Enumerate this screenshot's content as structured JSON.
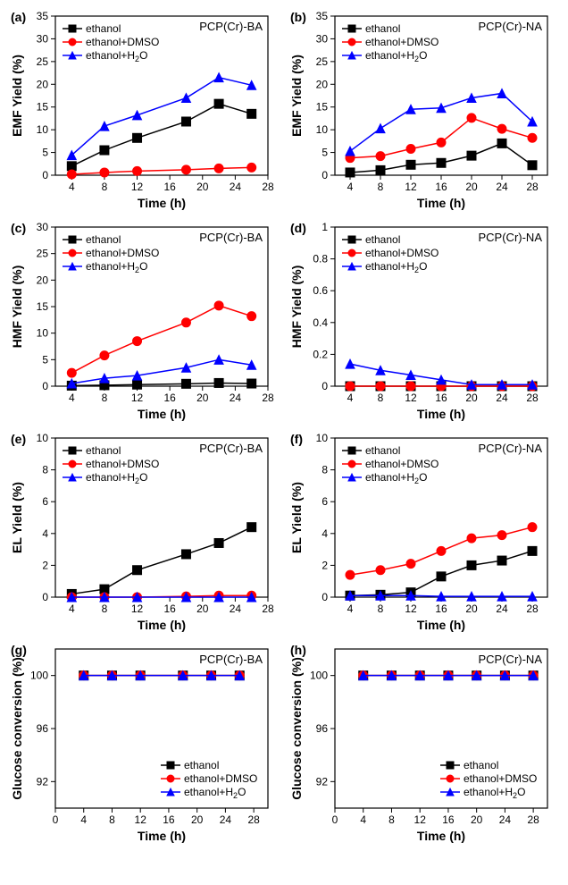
{
  "colors": {
    "ethanol": "#000000",
    "dmso": "#ff0000",
    "h2o": "#0000ff",
    "axis": "#000000",
    "bg": "#ffffff"
  },
  "markers": {
    "ethanol": "square",
    "dmso": "circle",
    "h2o": "triangle"
  },
  "marker_size": 5,
  "line_width": 1.5,
  "font": {
    "axis_label": 14,
    "tick": 12,
    "letter": 14,
    "legend": 12,
    "title": 13
  },
  "legend_labels": {
    "ethanol": "ethanol",
    "dmso": "ethanol+DMSO",
    "h2o": "ethanol+H₂O"
  },
  "panels": [
    {
      "id": "a",
      "letter": "(a)",
      "title": "PCP(Cr)-BA",
      "ylabel": "EMF Yield (%)",
      "xlabel": "Time (h)",
      "xlim": [
        2,
        28
      ],
      "xticks": [
        4,
        8,
        12,
        16,
        20,
        24,
        28
      ],
      "ylim": [
        0,
        35
      ],
      "yticks": [
        0,
        5,
        10,
        15,
        20,
        25,
        30,
        35
      ],
      "legend_pos": "inside-top-left",
      "series": {
        "ethanol": {
          "x": [
            4,
            8,
            12,
            18,
            22,
            26
          ],
          "y": [
            2.0,
            5.5,
            8.2,
            11.8,
            15.7,
            13.5
          ]
        },
        "dmso": {
          "x": [
            4,
            8,
            12,
            18,
            22,
            26
          ],
          "y": [
            0.2,
            0.6,
            0.9,
            1.2,
            1.5,
            1.7
          ]
        },
        "h2o": {
          "x": [
            4,
            8,
            12,
            18,
            22,
            26
          ],
          "y": [
            4.4,
            10.8,
            13.2,
            17.0,
            21.5,
            19.8
          ]
        }
      }
    },
    {
      "id": "b",
      "letter": "(b)",
      "title": "PCP(Cr)-NA",
      "ylabel": "EMF Yield (%)",
      "xlabel": "Time (h)",
      "xlim": [
        2,
        30
      ],
      "xticks": [
        4,
        8,
        12,
        16,
        20,
        24,
        28
      ],
      "ylim": [
        0,
        35
      ],
      "yticks": [
        0,
        5,
        10,
        15,
        20,
        25,
        30,
        35
      ],
      "legend_pos": "inside-top-left",
      "series": {
        "ethanol": {
          "x": [
            4,
            8,
            12,
            16,
            20,
            24,
            28
          ],
          "y": [
            0.6,
            1.1,
            2.3,
            2.7,
            4.3,
            7.0,
            2.2
          ]
        },
        "dmso": {
          "x": [
            4,
            8,
            12,
            16,
            20,
            24,
            28
          ],
          "y": [
            3.8,
            4.2,
            5.8,
            7.2,
            12.6,
            10.2,
            8.2
          ]
        },
        "h2o": {
          "x": [
            4,
            8,
            12,
            16,
            20,
            24,
            28
          ],
          "y": [
            5.3,
            10.3,
            14.5,
            14.8,
            17.0,
            18.0,
            11.8
          ]
        }
      }
    },
    {
      "id": "c",
      "letter": "(c)",
      "title": "PCP(Cr)-BA",
      "ylabel": "HMF Yield (%)",
      "xlabel": "Time (h)",
      "xlim": [
        2,
        28
      ],
      "xticks": [
        4,
        8,
        12,
        16,
        20,
        24,
        28
      ],
      "ylim": [
        0,
        30
      ],
      "yticks": [
        0,
        5,
        10,
        15,
        20,
        25,
        30
      ],
      "legend_pos": "inside-top-left",
      "series": {
        "ethanol": {
          "x": [
            4,
            8,
            12,
            18,
            22,
            26
          ],
          "y": [
            0.1,
            0.18,
            0.3,
            0.45,
            0.6,
            0.5
          ]
        },
        "dmso": {
          "x": [
            4,
            8,
            12,
            18,
            22,
            26
          ],
          "y": [
            2.5,
            5.8,
            8.5,
            12.0,
            15.2,
            13.2
          ]
        },
        "h2o": {
          "x": [
            4,
            8,
            12,
            18,
            22,
            26
          ],
          "y": [
            0.5,
            1.5,
            2.0,
            3.5,
            5.0,
            4.0
          ]
        }
      }
    },
    {
      "id": "d",
      "letter": "(d)",
      "title": "PCP(Cr)-NA",
      "ylabel": "HMF Yield (%)",
      "xlabel": "Time (h)",
      "xlim": [
        2,
        30
      ],
      "xticks": [
        4,
        8,
        12,
        16,
        20,
        24,
        28
      ],
      "ylim": [
        0,
        1.0
      ],
      "yticks": [
        0,
        0.2,
        0.4,
        0.6,
        0.8,
        1.0
      ],
      "legend_pos": "inside-top-left",
      "series": {
        "ethanol": {
          "x": [
            4,
            8,
            12,
            16,
            20,
            24,
            28
          ],
          "y": [
            0,
            0,
            0,
            0,
            0,
            0,
            0
          ]
        },
        "dmso": {
          "x": [
            4,
            8,
            12,
            16,
            20,
            24,
            28
          ],
          "y": [
            0,
            0,
            0,
            0,
            0,
            0,
            0
          ]
        },
        "h2o": {
          "x": [
            4,
            8,
            12,
            16,
            20,
            24,
            28
          ],
          "y": [
            0.14,
            0.1,
            0.07,
            0.04,
            0.01,
            0.01,
            0.01
          ]
        }
      }
    },
    {
      "id": "e",
      "letter": "(e)",
      "title": "PCP(Cr)-BA",
      "ylabel": "EL Yield (%)",
      "xlabel": "Time (h)",
      "xlim": [
        2,
        28
      ],
      "xticks": [
        4,
        8,
        12,
        16,
        20,
        24,
        28
      ],
      "ylim": [
        0,
        10
      ],
      "yticks": [
        0,
        2,
        4,
        6,
        8,
        10
      ],
      "legend_pos": "inside-top-left",
      "series": {
        "ethanol": {
          "x": [
            4,
            8,
            12,
            18,
            22,
            26
          ],
          "y": [
            0.2,
            0.5,
            1.7,
            2.7,
            3.4,
            4.4
          ]
        },
        "dmso": {
          "x": [
            4,
            8,
            12,
            18,
            22,
            26
          ],
          "y": [
            0,
            0,
            0,
            0.05,
            0.1,
            0.1
          ]
        },
        "h2o": {
          "x": [
            4,
            8,
            12,
            18,
            22,
            26
          ],
          "y": [
            0,
            0,
            0,
            0,
            0,
            0
          ]
        }
      }
    },
    {
      "id": "f",
      "letter": "(f)",
      "title": "PCP(Cr)-NA",
      "ylabel": "EL Yield (%)",
      "xlabel": "Time (h)",
      "xlim": [
        2,
        30
      ],
      "xticks": [
        4,
        8,
        12,
        16,
        20,
        24,
        28
      ],
      "ylim": [
        0,
        10
      ],
      "yticks": [
        0,
        2,
        4,
        6,
        8,
        10
      ],
      "legend_pos": "inside-top-left",
      "series": {
        "ethanol": {
          "x": [
            4,
            8,
            12,
            16,
            20,
            24,
            28
          ],
          "y": [
            0.1,
            0.15,
            0.3,
            1.3,
            2.0,
            2.3,
            2.9
          ]
        },
        "dmso": {
          "x": [
            4,
            8,
            12,
            16,
            20,
            24,
            28
          ],
          "y": [
            1.4,
            1.7,
            2.1,
            2.9,
            3.7,
            3.9,
            4.4
          ]
        },
        "h2o": {
          "x": [
            4,
            8,
            12,
            16,
            20,
            24,
            28
          ],
          "y": [
            0.1,
            0.1,
            0.1,
            0.05,
            0.05,
            0.05,
            0.05
          ]
        }
      }
    },
    {
      "id": "g",
      "letter": "(g)",
      "title": "PCP(Cr)-BA",
      "ylabel": "Glucose conversion (%)",
      "xlabel": "Time (h)",
      "xlim": [
        0,
        30
      ],
      "xticks": [
        0,
        4,
        8,
        12,
        16,
        20,
        24,
        28
      ],
      "ylim": [
        90,
        102
      ],
      "yticks": [
        92,
        96,
        100
      ],
      "legend_pos": "inside-bottom-right",
      "series": {
        "ethanol": {
          "x": [
            4,
            8,
            12,
            18,
            22,
            26
          ],
          "y": [
            100,
            100,
            100,
            100,
            100,
            100
          ]
        },
        "dmso": {
          "x": [
            4,
            8,
            12,
            18,
            22,
            26
          ],
          "y": [
            100,
            100,
            100,
            100,
            100,
            100
          ]
        },
        "h2o": {
          "x": [
            4,
            8,
            12,
            18,
            22,
            26
          ],
          "y": [
            100,
            100,
            100,
            100,
            100,
            100
          ]
        }
      }
    },
    {
      "id": "h",
      "letter": "(h)",
      "title": "PCP(Cr)-NA",
      "ylabel": "Glucose conversion (%)",
      "xlabel": "Time (h)",
      "xlim": [
        0,
        30
      ],
      "xticks": [
        0,
        4,
        8,
        12,
        16,
        20,
        24,
        28
      ],
      "ylim": [
        90,
        102
      ],
      "yticks": [
        92,
        96,
        100
      ],
      "legend_pos": "inside-bottom-right",
      "series": {
        "ethanol": {
          "x": [
            4,
            8,
            12,
            16,
            20,
            24,
            28
          ],
          "y": [
            100,
            100,
            100,
            100,
            100,
            100,
            100
          ]
        },
        "dmso": {
          "x": [
            4,
            8,
            12,
            16,
            20,
            24,
            28
          ],
          "y": [
            100,
            100,
            100,
            100,
            100,
            100,
            100
          ]
        },
        "h2o": {
          "x": [
            4,
            8,
            12,
            16,
            20,
            24,
            28
          ],
          "y": [
            100,
            100,
            100,
            100,
            100,
            100,
            100
          ]
        }
      }
    }
  ]
}
